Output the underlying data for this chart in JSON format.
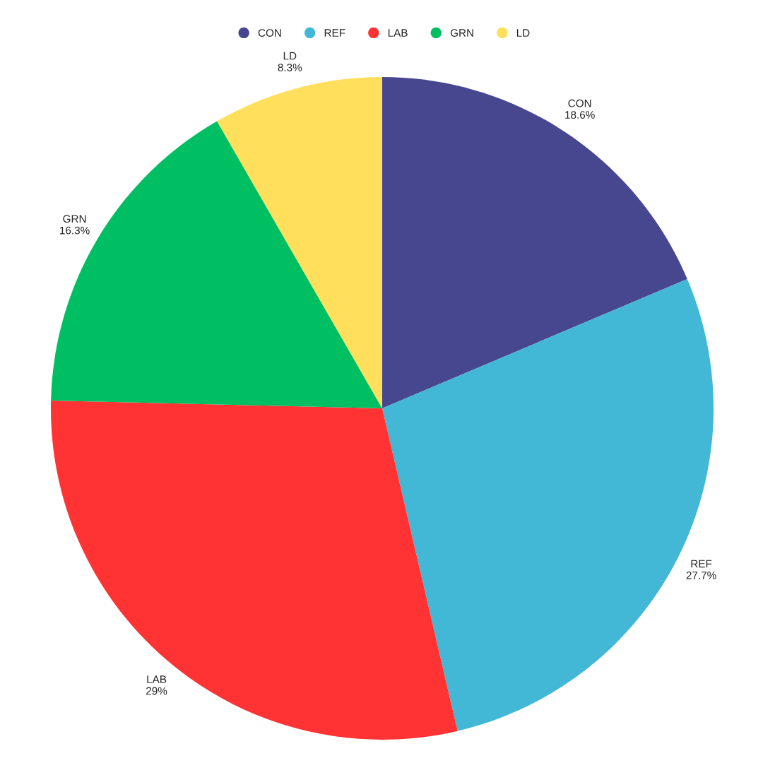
{
  "chart_data": {
    "type": "pie",
    "categories": [
      "CON",
      "REF",
      "LAB",
      "GRN",
      "LD"
    ],
    "values": [
      18.6,
      27.7,
      29,
      16.3,
      8.3
    ],
    "value_labels": [
      "18.6%",
      "27.7%",
      "29%",
      "16.3%",
      "8.3%"
    ],
    "colors": [
      "#46478f",
      "#43b7d6",
      "#ff3333",
      "#00be62",
      "#ffdf5b"
    ],
    "legend": "top"
  }
}
